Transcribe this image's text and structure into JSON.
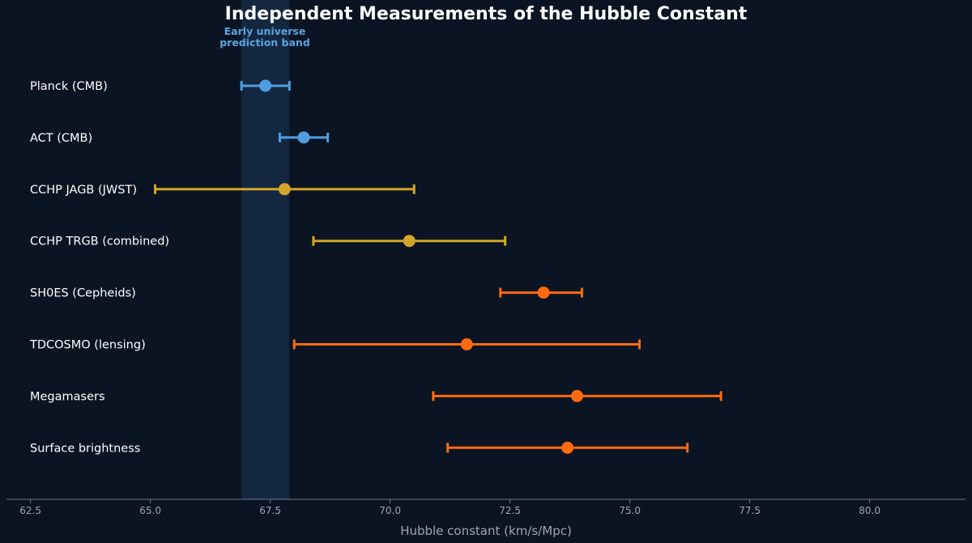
{
  "chart_data": {
    "type": "scatter",
    "title": "Independent Measurements of the Hubble Constant",
    "xlabel": "Hubble constant  (km/s/Mpc)",
    "ylabel": "",
    "xlim": [
      62.0,
      82.0
    ],
    "xticks": [
      "62.5",
      "65.0",
      "67.5",
      "70.0",
      "72.5",
      "75.0",
      "77.5",
      "80.0"
    ],
    "band": {
      "label_lines": [
        "Early universe",
        "prediction band"
      ],
      "range": [
        66.9,
        67.9
      ],
      "color": "#142740"
    },
    "colors": {
      "early_universe": "#4f9fe0",
      "trgb_jagb": "#d4a52a",
      "late_universe": "#ff6a10"
    },
    "measurements": [
      {
        "label": "Planck (CMB)",
        "value": 67.4,
        "low": 66.9,
        "high": 67.9,
        "color": "#4f9fe0"
      },
      {
        "label": "ACT (CMB)",
        "value": 68.2,
        "low": 67.7,
        "high": 68.7,
        "color": "#4f9fe0"
      },
      {
        "label": "CCHP JAGB (JWST)",
        "value": 67.8,
        "low": 65.1,
        "high": 70.5,
        "color": "#d4a52a"
      },
      {
        "label": "CCHP TRGB (combined)",
        "value": 70.4,
        "low": 68.4,
        "high": 72.4,
        "color": "#d4a52a"
      },
      {
        "label": "SH0ES (Cepheids)",
        "value": 73.2,
        "low": 72.3,
        "high": 74.0,
        "color": "#ff6a10"
      },
      {
        "label": "TDCOSMO (lensing)",
        "value": 71.6,
        "low": 68.0,
        "high": 75.2,
        "color": "#ff6a10"
      },
      {
        "label": "Megamasers",
        "value": 73.9,
        "low": 70.9,
        "high": 76.9,
        "color": "#ff6a10"
      },
      {
        "label": "Surface brightness",
        "value": 73.7,
        "low": 71.2,
        "high": 76.2,
        "color": "#ff6a10"
      }
    ]
  }
}
